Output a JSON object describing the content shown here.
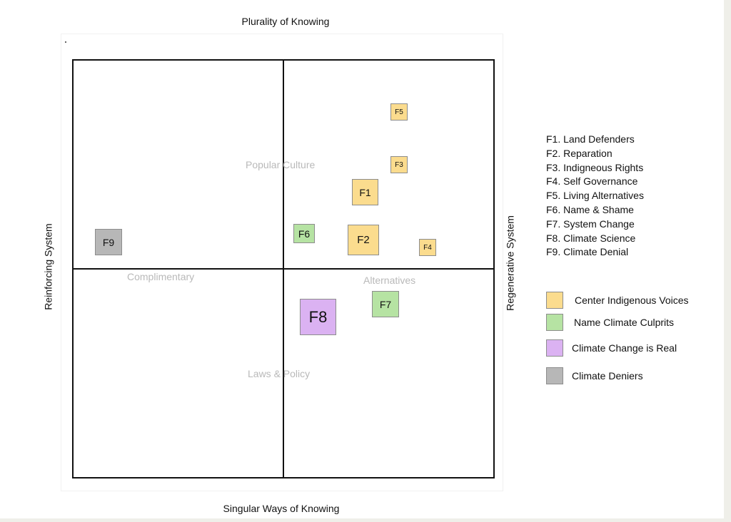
{
  "axes": {
    "top": "Plurality of Knowing",
    "bottom": "Singular Ways of Knowing",
    "left": "Reinforcing System",
    "right": "Regenerative System"
  },
  "regions": {
    "popular_culture": "Popular Culture",
    "complimentary": "Complimentary",
    "alternatives": "Alternatives",
    "laws_policy": "Laws & Policy"
  },
  "nodes": {
    "f1": "F1",
    "f2": "F2",
    "f3": "F3",
    "f4": "F4",
    "f5": "F5",
    "f6": "F6",
    "f7": "F7",
    "f8": "F8",
    "f9": "F9"
  },
  "node_legend": [
    "F1. Land Defenders",
    "F2. Reparation",
    "F3. Indigneous Rights",
    "F4. Self Governance",
    "F5. Living Alternatives",
    "F6. Name & Shame",
    "F7. System Change",
    "F8. Climate Science",
    "F9. Climate Denial"
  ],
  "color_legend": [
    {
      "label": "Center  Indigenous  Voices",
      "color": "#fbdc8e"
    },
    {
      "label": "Name Climate Culprits",
      "color": "#b6e3a3"
    },
    {
      "label": "Climate Change is Real",
      "color": "#dbb2f2"
    },
    {
      "label": "Climate Deniers",
      "color": "#b7b7b7"
    }
  ]
}
